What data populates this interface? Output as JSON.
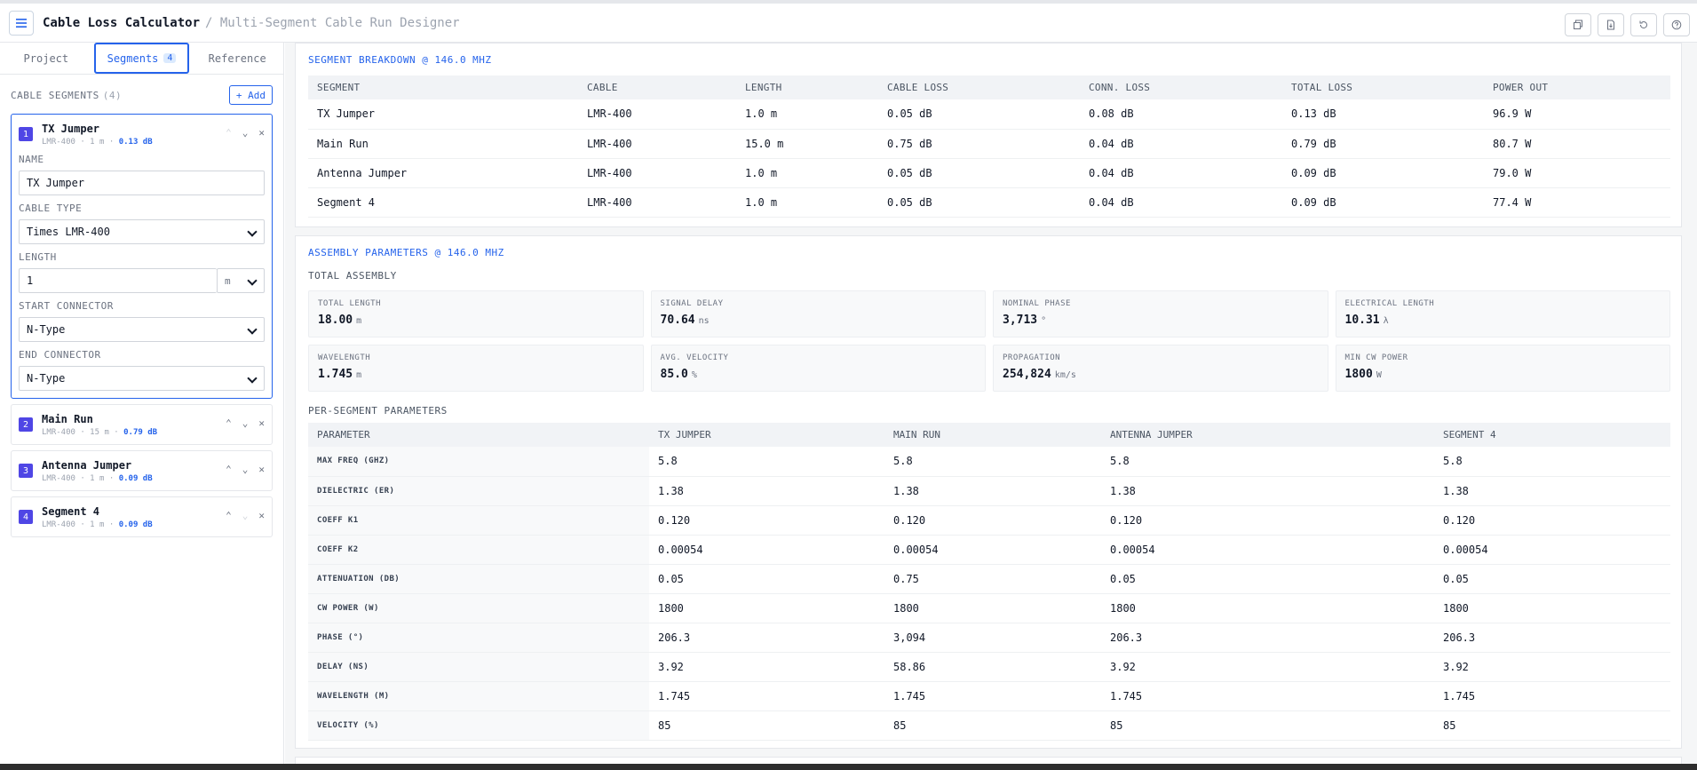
{
  "header": {
    "title": "Cable Loss Calculator",
    "subtitle": "/ Multi-Segment Cable Run Designer",
    "actions": [
      "copy-icon",
      "export-icon",
      "reset-icon",
      "help-icon"
    ]
  },
  "sidebar": {
    "tabs": [
      {
        "label": "Project"
      },
      {
        "label": "Segments",
        "count": "4"
      },
      {
        "label": "Reference"
      }
    ],
    "section_label": "CABLE SEGMENTS",
    "section_count": "(4)",
    "add_label": "+ Add",
    "segments": [
      {
        "num": "1",
        "name": "TX Jumper",
        "meta": "LMR-400 · 1 m ·",
        "loss": "0.13 dB"
      },
      {
        "num": "2",
        "name": "Main Run",
        "meta": "LMR-400 · 15 m ·",
        "loss": "0.79 dB"
      },
      {
        "num": "3",
        "name": "Antenna Jumper",
        "meta": "LMR-400 · 1 m ·",
        "loss": "0.09 dB"
      },
      {
        "num": "4",
        "name": "Segment 4",
        "meta": "LMR-400 · 1 m ·",
        "loss": "0.09 dB"
      }
    ],
    "editor": {
      "name_label": "NAME",
      "name_value": "TX Jumper",
      "cable_label": "CABLE TYPE",
      "cable_value": "Times LMR-400",
      "length_label": "LENGTH",
      "length_value": "1",
      "length_unit": "m",
      "start_label": "START CONNECTOR",
      "start_value": "N-Type",
      "end_label": "END CONNECTOR",
      "end_value": "N-Type"
    }
  },
  "breakdown": {
    "title": "SEGMENT BREAKDOWN @ 146.0 MHZ",
    "columns": [
      "SEGMENT",
      "CABLE",
      "LENGTH",
      "CABLE LOSS",
      "CONN. LOSS",
      "TOTAL LOSS",
      "POWER OUT"
    ],
    "rows": [
      [
        "TX Jumper",
        "LMR-400",
        "1.0 m",
        "0.05 dB",
        "0.08 dB",
        "0.13 dB",
        "96.9 W"
      ],
      [
        "Main Run",
        "LMR-400",
        "15.0 m",
        "0.75 dB",
        "0.04 dB",
        "0.79 dB",
        "80.7 W"
      ],
      [
        "Antenna Jumper",
        "LMR-400",
        "1.0 m",
        "0.05 dB",
        "0.04 dB",
        "0.09 dB",
        "79.0 W"
      ],
      [
        "Segment 4",
        "LMR-400",
        "1.0 m",
        "0.05 dB",
        "0.04 dB",
        "0.09 dB",
        "77.4 W"
      ]
    ]
  },
  "assembly": {
    "title": "ASSEMBLY PARAMETERS @ 146.0 MHZ",
    "total_label": "TOTAL ASSEMBLY",
    "stats": [
      {
        "label": "TOTAL LENGTH",
        "value": "18.00",
        "unit": "m"
      },
      {
        "label": "SIGNAL DELAY",
        "value": "70.64",
        "unit": "ns"
      },
      {
        "label": "NOMINAL PHASE",
        "value": "3,713",
        "unit": "°"
      },
      {
        "label": "ELECTRICAL LENGTH",
        "value": "10.31",
        "unit": "λ"
      },
      {
        "label": "WAVELENGTH",
        "value": "1.745",
        "unit": "m"
      },
      {
        "label": "AVG. VELOCITY",
        "value": "85.0",
        "unit": "%"
      },
      {
        "label": "PROPAGATION",
        "value": "254,824",
        "unit": "km/s"
      },
      {
        "label": "MIN CW POWER",
        "value": "1800",
        "unit": "W"
      }
    ],
    "per_segment_label": "PER-SEGMENT PARAMETERS",
    "param_columns": [
      "PARAMETER",
      "TX JUMPER",
      "MAIN RUN",
      "ANTENNA JUMPER",
      "SEGMENT 4"
    ],
    "param_rows": [
      [
        "MAX FREQ (GHZ)",
        "5.8",
        "5.8",
        "5.8",
        "5.8"
      ],
      [
        "DIELECTRIC (ER)",
        "1.38",
        "1.38",
        "1.38",
        "1.38"
      ],
      [
        "COEFF K1",
        "0.120",
        "0.120",
        "0.120",
        "0.120"
      ],
      [
        "COEFF K2",
        "0.00054",
        "0.00054",
        "0.00054",
        "0.00054"
      ],
      [
        "ATTENUATION (DB)",
        "0.05",
        "0.75",
        "0.05",
        "0.05"
      ],
      [
        "CW POWER (W)",
        "1800",
        "1800",
        "1800",
        "1800"
      ],
      [
        "PHASE (°)",
        "206.3",
        "3,094",
        "206.3",
        "206.3"
      ],
      [
        "DELAY (NS)",
        "3.92",
        "58.86",
        "3.92",
        "3.92"
      ],
      [
        "WAVELENGTH (M)",
        "1.745",
        "1.745",
        "1.745",
        "1.745"
      ],
      [
        "VELOCITY (%)",
        "85",
        "85",
        "85",
        "85"
      ]
    ]
  }
}
